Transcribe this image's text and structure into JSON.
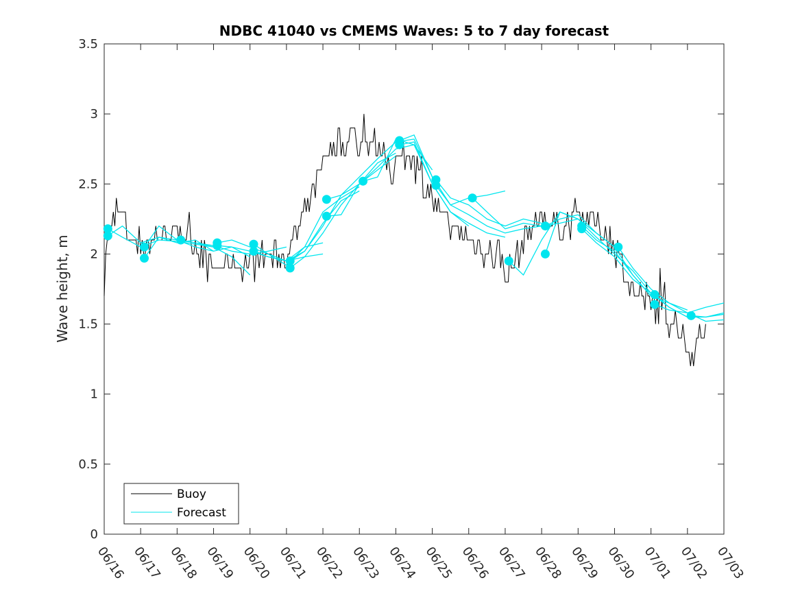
{
  "chart_data": {
    "type": "line",
    "title": "NDBC 41040 vs CMEMS Waves: 5 to 7 day forecast",
    "xlabel": "",
    "ylabel": "Wave height, m",
    "xlim": [
      0,
      17
    ],
    "ylim": [
      0,
      3.5
    ],
    "yticks": [
      0,
      0.5,
      1,
      1.5,
      2,
      2.5,
      3,
      3.5
    ],
    "ytick_labels": [
      "0",
      "0.5",
      "1",
      "1.5",
      "2",
      "2.5",
      "3",
      "3.5"
    ],
    "xticks": [
      0,
      1,
      2,
      3,
      4,
      5,
      6,
      7,
      8,
      9,
      10,
      11,
      12,
      13,
      14,
      15,
      16,
      17
    ],
    "xtick_labels": [
      "06/16",
      "06/17",
      "06/18",
      "06/19",
      "06/20",
      "06/21",
      "06/22",
      "06/23",
      "06/24",
      "06/25",
      "06/26",
      "06/27",
      "06/28",
      "06/29",
      "06/30",
      "07/01",
      "07/02",
      "07/03"
    ],
    "grid": false,
    "legend": {
      "placement": "bottom-left",
      "entries": [
        {
          "label": "Buoy",
          "color": "#000000"
        },
        {
          "label": "Forecast",
          "color": "#00e5ee"
        }
      ]
    },
    "colors": {
      "buoy": "#000000",
      "forecast": "#00e5ee"
    },
    "buoy_anchors": [
      [
        0.0,
        1.8
      ],
      [
        0.05,
        2.05
      ],
      [
        0.2,
        2.2
      ],
      [
        0.5,
        2.3
      ],
      [
        0.7,
        2.1
      ],
      [
        1.0,
        2.05
      ],
      [
        1.3,
        2.1
      ],
      [
        1.6,
        2.15
      ],
      [
        2.0,
        2.15
      ],
      [
        2.3,
        2.1
      ],
      [
        2.6,
        2.05
      ],
      [
        2.9,
        1.9
      ],
      [
        3.2,
        1.9
      ],
      [
        3.6,
        1.95
      ],
      [
        4.0,
        1.92
      ],
      [
        4.4,
        1.98
      ],
      [
        4.8,
        2.0
      ],
      [
        5.1,
        2.05
      ],
      [
        5.3,
        2.15
      ],
      [
        5.6,
        2.35
      ],
      [
        5.9,
        2.55
      ],
      [
        6.2,
        2.75
      ],
      [
        6.5,
        2.8
      ],
      [
        6.8,
        2.85
      ],
      [
        7.0,
        2.75
      ],
      [
        7.3,
        2.8
      ],
      [
        7.6,
        2.75
      ],
      [
        7.9,
        2.6
      ],
      [
        8.2,
        2.7
      ],
      [
        8.5,
        2.75
      ],
      [
        8.8,
        2.5
      ],
      [
        9.1,
        2.35
      ],
      [
        9.4,
        2.2
      ],
      [
        9.7,
        2.15
      ],
      [
        10.0,
        2.1
      ],
      [
        10.3,
        2.05
      ],
      [
        10.6,
        2.0
      ],
      [
        10.9,
        2.0
      ],
      [
        11.0,
        1.85
      ],
      [
        11.2,
        1.9
      ],
      [
        11.5,
        2.1
      ],
      [
        11.8,
        2.2
      ],
      [
        12.1,
        2.25
      ],
      [
        12.4,
        2.2
      ],
      [
        12.7,
        2.2
      ],
      [
        13.0,
        2.3
      ],
      [
        13.3,
        2.25
      ],
      [
        13.6,
        2.2
      ],
      [
        13.9,
        2.1
      ],
      [
        14.1,
        2.0
      ],
      [
        14.3,
        1.85
      ],
      [
        14.6,
        1.7
      ],
      [
        15.0,
        1.65
      ],
      [
        15.3,
        1.6
      ],
      [
        15.6,
        1.5
      ],
      [
        15.9,
        1.35
      ],
      [
        16.1,
        1.3
      ],
      [
        16.3,
        1.4
      ],
      [
        16.5,
        1.5
      ]
    ],
    "buoy_jitter": 0.1,
    "forecast_series": [
      {
        "x": [
          0.1,
          0.5,
          1.0,
          1.5,
          2.0,
          2.5,
          3.0
        ],
        "y": [
          2.18,
          2.12,
          2.05,
          2.1,
          2.09,
          2.07,
          2.05
        ]
      },
      {
        "x": [
          0.1,
          0.5,
          1.0,
          1.5,
          2.0,
          2.5,
          3.0
        ],
        "y": [
          2.13,
          2.2,
          2.08,
          2.12,
          2.08,
          2.1,
          2.02
        ]
      },
      {
        "x": [
          1.1,
          1.5,
          2.0,
          2.5,
          3.0,
          3.5,
          4.0
        ],
        "y": [
          2.05,
          2.2,
          2.1,
          2.05,
          2.02,
          2.05,
          1.98
        ]
      },
      {
        "x": [
          1.1,
          1.5,
          2.0,
          2.5,
          3.0,
          3.5,
          4.0
        ],
        "y": [
          1.97,
          2.12,
          2.1,
          2.08,
          2.05,
          1.98,
          1.85
        ]
      },
      {
        "x": [
          2.1,
          2.5,
          3.0,
          3.5,
          4.0,
          4.5,
          5.0
        ],
        "y": [
          2.1,
          2.08,
          2.06,
          2.02,
          2.0,
          2.02,
          2.05
        ]
      },
      {
        "x": [
          3.1,
          3.5,
          4.0,
          4.5,
          5.0,
          5.5,
          6.0
        ],
        "y": [
          2.08,
          2.1,
          2.05,
          2.0,
          1.95,
          1.98,
          2.0
        ]
      },
      {
        "x": [
          3.1,
          3.5,
          4.0,
          4.5,
          5.0,
          5.5,
          6.0
        ],
        "y": [
          2.06,
          2.05,
          2.02,
          1.98,
          1.95,
          2.05,
          2.08
        ]
      },
      {
        "x": [
          4.1,
          4.5,
          5.0,
          5.5,
          6.0,
          6.5,
          7.0
        ],
        "y": [
          2.07,
          2.0,
          1.92,
          2.05,
          2.3,
          2.4,
          2.48
        ]
      },
      {
        "x": [
          4.1,
          4.5,
          5.0,
          5.5,
          6.0,
          6.5,
          7.0
        ],
        "y": [
          2.02,
          1.98,
          1.95,
          2.02,
          2.22,
          2.38,
          2.45
        ]
      },
      {
        "x": [
          5.1,
          5.5,
          6.0,
          6.5,
          7.0,
          7.5,
          8.0
        ],
        "y": [
          1.95,
          2.02,
          2.2,
          2.42,
          2.5,
          2.65,
          2.72
        ]
      },
      {
        "x": [
          5.1,
          5.5,
          6.0,
          6.5,
          7.0,
          7.5,
          8.0
        ],
        "y": [
          1.9,
          1.98,
          2.15,
          2.35,
          2.5,
          2.6,
          2.7
        ]
      },
      {
        "x": [
          6.1,
          6.5,
          7.0,
          7.5,
          8.0,
          8.5,
          9.0
        ],
        "y": [
          2.39,
          2.42,
          2.55,
          2.68,
          2.8,
          2.82,
          2.55
        ]
      },
      {
        "x": [
          6.1,
          6.5,
          7.0,
          7.5,
          8.0,
          8.5,
          9.0
        ],
        "y": [
          2.27,
          2.28,
          2.5,
          2.62,
          2.75,
          2.78,
          2.6
        ]
      },
      {
        "x": [
          7.1,
          7.5,
          8.0,
          8.5,
          9.0,
          9.5,
          10.0
        ],
        "y": [
          2.52,
          2.55,
          2.82,
          2.78,
          2.5,
          2.3,
          2.2
        ]
      },
      {
        "x": [
          8.1,
          8.5,
          9.0,
          9.5,
          10.0,
          10.5,
          11.0
        ],
        "y": [
          2.81,
          2.85,
          2.55,
          2.35,
          2.4,
          2.42,
          2.45
        ]
      },
      {
        "x": [
          8.1,
          8.5,
          9.0,
          9.5,
          10.0,
          10.5,
          11.0
        ],
        "y": [
          2.78,
          2.8,
          2.5,
          2.3,
          2.22,
          2.15,
          2.12
        ]
      },
      {
        "x": [
          9.1,
          9.5,
          10.0,
          10.5,
          11.0,
          11.5,
          12.0
        ],
        "y": [
          2.53,
          2.4,
          2.35,
          2.25,
          2.2,
          2.25,
          2.22
        ]
      },
      {
        "x": [
          9.1,
          9.5,
          10.0,
          10.5,
          11.0,
          11.5,
          12.0
        ],
        "y": [
          2.49,
          2.35,
          2.28,
          2.2,
          2.15,
          2.18,
          2.2
        ]
      },
      {
        "x": [
          10.1,
          10.5,
          11.0,
          11.5,
          12.0,
          12.5,
          13.0
        ],
        "y": [
          2.4,
          2.3,
          2.18,
          2.22,
          2.2,
          2.22,
          2.25
        ]
      },
      {
        "x": [
          11.1,
          11.5,
          12.0,
          12.5,
          13.0,
          13.5,
          14.0
        ],
        "y": [
          1.95,
          1.85,
          2.1,
          2.3,
          2.25,
          2.15,
          2.05
        ]
      },
      {
        "x": [
          12.1,
          12.5,
          13.0,
          13.5,
          14.0,
          14.5,
          15.0
        ],
        "y": [
          2.2,
          2.25,
          2.28,
          2.15,
          2.05,
          1.85,
          1.7
        ]
      },
      {
        "x": [
          12.1,
          12.5,
          13.0,
          13.5,
          14.0,
          14.5,
          15.0
        ],
        "y": [
          2.0,
          2.3,
          2.25,
          2.12,
          2.0,
          1.88,
          1.72
        ]
      },
      {
        "x": [
          13.1,
          13.5,
          14.0,
          14.5,
          15.0,
          15.5,
          16.0
        ],
        "y": [
          2.2,
          2.1,
          2.02,
          1.85,
          1.7,
          1.65,
          1.6
        ]
      },
      {
        "x": [
          13.1,
          13.5,
          14.0,
          14.5,
          15.0,
          15.5,
          16.0
        ],
        "y": [
          2.18,
          2.08,
          1.98,
          1.82,
          1.72,
          1.62,
          1.55
        ]
      },
      {
        "x": [
          14.1,
          14.5,
          15.0,
          15.5,
          16.0,
          16.5,
          17.0
        ],
        "y": [
          2.05,
          1.9,
          1.75,
          1.65,
          1.58,
          1.62,
          1.65
        ]
      },
      {
        "x": [
          15.1,
          15.5,
          16.0,
          16.5,
          17.0
        ],
        "y": [
          1.71,
          1.62,
          1.55,
          1.55,
          1.57
        ]
      },
      {
        "x": [
          15.1,
          15.5,
          16.0,
          16.5,
          17.0
        ],
        "y": [
          1.64,
          1.6,
          1.58,
          1.52,
          1.53
        ]
      },
      {
        "x": [
          16.1,
          16.5,
          17.0
        ],
        "y": [
          1.56,
          1.55,
          1.58
        ]
      }
    ]
  }
}
